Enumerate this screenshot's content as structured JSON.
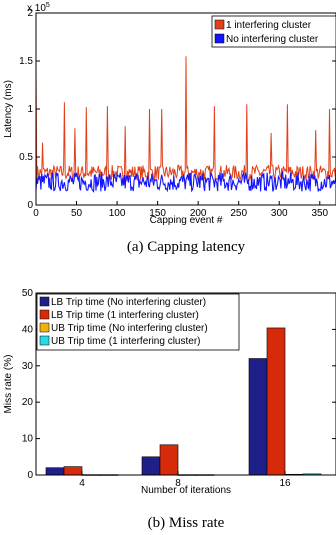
{
  "chart_data": [
    {
      "type": "line",
      "xlabel": "Capping event #",
      "ylabel": "Latency (ms)",
      "y_multiplier_label": "x 10",
      "y_multiplier_exponent": "5",
      "xlim": [
        0,
        370
      ],
      "ylim": [
        0,
        2
      ],
      "x_ticks": [
        "0",
        "50",
        "100",
        "150",
        "200",
        "250",
        "300",
        "350"
      ],
      "y_ticks": [
        "0",
        "0.5",
        "1",
        "1.5",
        "2"
      ],
      "grid": false,
      "legend_position": "top-right",
      "series": [
        {
          "name": "1 interfering cluster",
          "color": "#e2401a",
          "baseline": 0.32,
          "jitter": 0.08,
          "spikes": [
            [
              0,
              1.42
            ],
            [
              8,
              0.65
            ],
            [
              35,
              1.07
            ],
            [
              48,
              0.8
            ],
            [
              62,
              1.02
            ],
            [
              88,
              1.03
            ],
            [
              110,
              0.82
            ],
            [
              140,
              1.0
            ],
            [
              155,
              1.0
            ],
            [
              185,
              1.55
            ],
            [
              220,
              1.03
            ],
            [
              260,
              1.05
            ],
            [
              290,
              0.75
            ],
            [
              310,
              1.05
            ],
            [
              345,
              0.78
            ],
            [
              362,
              1.0
            ]
          ]
        },
        {
          "name": "No interfering cluster",
          "color": "#1414ff",
          "baseline": 0.22,
          "jitter": 0.1,
          "spikes": []
        }
      ],
      "caption": "(a) Capping latency"
    },
    {
      "type": "bar",
      "xlabel": "Number of iterations",
      "ylabel": "Miss rate (%)",
      "categories": [
        "4",
        "8",
        "16"
      ],
      "ylim": [
        0,
        50
      ],
      "y_ticks": [
        "0",
        "10",
        "20",
        "30",
        "40",
        "50"
      ],
      "grid": false,
      "legend_position": "top-left",
      "series": [
        {
          "name": "LB Trip time (No interfering cluster)",
          "color": "#1f1f8a",
          "values": [
            2,
            5,
            32
          ]
        },
        {
          "name": "LB Trip time (1 interfering cluster)",
          "color": "#d62a0a",
          "values": [
            2.3,
            8.3,
            40.4
          ]
        },
        {
          "name": "UB Trip time (No interfering cluster)",
          "color": "#f0b20d",
          "values": [
            0.1,
            0.1,
            0.2
          ]
        },
        {
          "name": "UB Trip time (1 interfering cluster)",
          "color": "#2ad9e6",
          "values": [
            0.1,
            0.1,
            0.3
          ]
        }
      ],
      "caption": "(b) Miss rate"
    }
  ]
}
